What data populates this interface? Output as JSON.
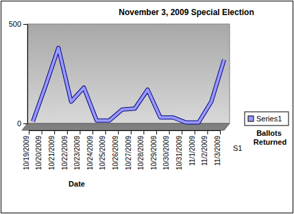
{
  "chart_data": {
    "type": "line",
    "title": "November 3, 2009 Special Election",
    "x_label": "Date",
    "annotations": [
      "Ballots Returned",
      "S1"
    ],
    "categories": [
      "10/19/2009",
      "10/20/2009",
      "10/21/2009",
      "10/22/2009",
      "10/23/2009",
      "10/24/2009",
      "10/25/2009",
      "10/26/2009",
      "10/27/2009",
      "10/28/2009",
      "10/29/2009",
      "10/30/2009",
      "10/31/2009",
      "11/1/2009",
      "11/2/2009",
      "11/3/2009"
    ],
    "series": [
      {
        "name": "Series1",
        "color": "#9999ff",
        "values": [
          10,
          190,
          380,
          110,
          180,
          15,
          15,
          70,
          75,
          170,
          30,
          30,
          5,
          5,
          110,
          320
        ]
      }
    ],
    "ylim": [
      0,
      500
    ],
    "yticks": [
      0,
      500
    ],
    "grid": false,
    "legend": "right"
  }
}
